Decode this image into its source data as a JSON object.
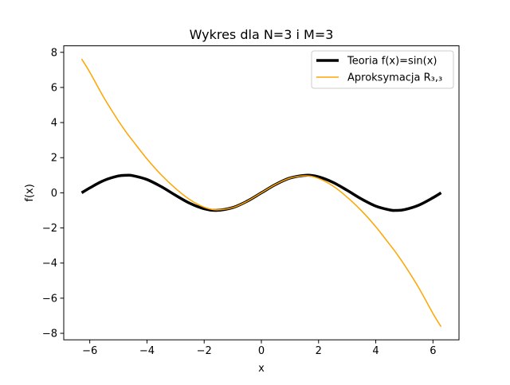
{
  "chart_data": {
    "type": "line",
    "title": "Wykres dla N=3 i M=3",
    "xlabel": "x",
    "ylabel": "f(x)",
    "xlim": [
      -6.91,
      6.91
    ],
    "ylim": [
      -8.37,
      8.37
    ],
    "xticks": [
      -6,
      -4,
      -2,
      0,
      2,
      4,
      6
    ],
    "xtick_labels": [
      "−6",
      "−4",
      "−2",
      "0",
      "2",
      "4",
      "6"
    ],
    "yticks": [
      -8,
      -6,
      -4,
      -2,
      0,
      2,
      4,
      6,
      8
    ],
    "ytick_labels": [
      "−8",
      "−6",
      "−4",
      "−2",
      "0",
      "2",
      "4",
      "6",
      "8"
    ],
    "grid": false,
    "legend_position": "upper right",
    "x": [
      -6.283,
      -6.0,
      -5.5,
      -5.0,
      -4.712,
      -4.5,
      -4.0,
      -3.5,
      -3.0,
      -2.5,
      -2.0,
      -1.571,
      -1.0,
      -0.5,
      0.0,
      0.5,
      1.0,
      1.571,
      2.0,
      2.5,
      3.0,
      3.5,
      4.0,
      4.5,
      4.712,
      5.0,
      5.5,
      6.0,
      6.283
    ],
    "series": [
      {
        "name": "Teoria f(x)=sin(x)",
        "color": "#000000",
        "values": [
          0.0,
          0.279,
          0.706,
          0.959,
          1.0,
          0.978,
          0.757,
          0.351,
          -0.141,
          -0.598,
          -0.909,
          -1.0,
          -0.841,
          -0.479,
          0.0,
          0.479,
          0.841,
          1.0,
          0.909,
          0.598,
          0.141,
          -0.351,
          -0.757,
          -0.978,
          -1.0,
          -0.959,
          -0.706,
          -0.279,
          0.0
        ]
      },
      {
        "name": "Aproksymacja R₃,₃",
        "color": "#ffa500",
        "values": [
          7.62,
          6.87,
          5.4,
          4.1,
          3.42,
          2.97,
          1.93,
          1.02,
          0.25,
          -0.39,
          -0.82,
          -0.97,
          -0.84,
          -0.48,
          0.0,
          0.48,
          0.84,
          0.97,
          0.82,
          0.39,
          -0.25,
          -1.02,
          -1.93,
          -2.97,
          -3.42,
          -4.1,
          -5.4,
          -6.87,
          -7.62
        ]
      }
    ]
  }
}
